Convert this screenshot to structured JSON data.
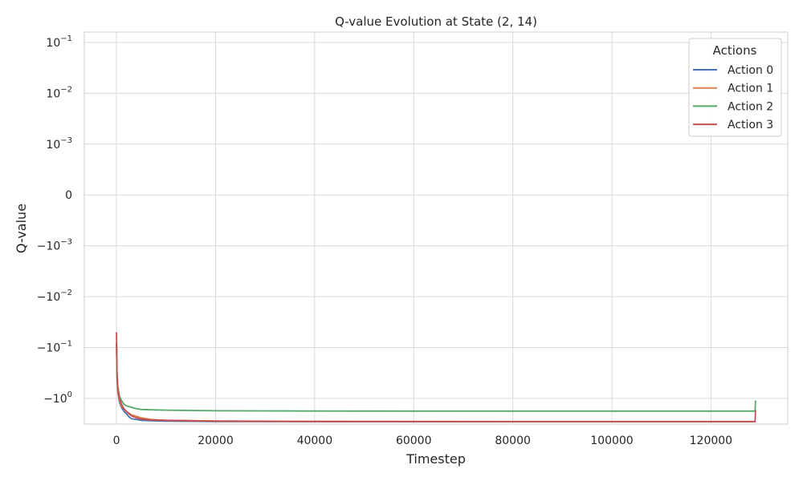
{
  "chart_data": {
    "type": "line",
    "title": "Q-value Evolution at State (2, 14)",
    "xlabel": "Timestep",
    "ylabel": "Q-value",
    "x_scale": "linear",
    "y_scale": "symlog",
    "xlim": [
      -6500,
      135500
    ],
    "ylim": [
      -3.2,
      0.16
    ],
    "x_ticks": [
      0,
      20000,
      40000,
      60000,
      80000,
      100000,
      120000
    ],
    "x_tick_labels": [
      "0",
      "20000",
      "40000",
      "60000",
      "80000",
      "100000",
      "120000"
    ],
    "y_ticks": [
      0.1,
      0.01,
      0.001,
      0,
      -0.001,
      -0.01,
      -0.1,
      -1
    ],
    "y_tick_labels": [
      {
        "base": "10",
        "exp": "−1"
      },
      {
        "base": "10",
        "exp": "−2"
      },
      {
        "base": "10",
        "exp": "−3"
      },
      {
        "base": "0",
        "exp": ""
      },
      {
        "base": "−10",
        "exp": "−3"
      },
      {
        "base": "−10",
        "exp": "−2"
      },
      {
        "base": "−10",
        "exp": "−1"
      },
      {
        "base": "−10",
        "exp": "0"
      }
    ],
    "grid": true,
    "legend": {
      "title": "Actions",
      "placement": "top-right"
    },
    "series": [
      {
        "name": "Action 0",
        "color": "#4c72b0",
        "x": [
          0,
          100,
          300,
          600,
          1000,
          1500,
          2000,
          2500,
          3000,
          4000,
          5000,
          7000,
          10000,
          20000,
          40000,
          60000,
          80000,
          100000,
          120000,
          129000
        ],
        "y": [
          -0.08,
          -0.4,
          -0.8,
          -1.2,
          -1.5,
          -1.8,
          -2.0,
          -2.3,
          -2.5,
          -2.6,
          -2.7,
          -2.75,
          -2.8,
          -2.85,
          -2.87,
          -2.88,
          -2.88,
          -2.88,
          -2.88,
          -2.88
        ]
      },
      {
        "name": "Action 1",
        "color": "#dd8452",
        "x": [
          0,
          100,
          300,
          600,
          1000,
          1500,
          2000,
          3000,
          5000,
          7000,
          10000,
          20000,
          40000,
          60000,
          80000,
          100000,
          120000,
          129000
        ],
        "y": [
          -0.08,
          -0.4,
          -0.8,
          -1.1,
          -1.4,
          -1.6,
          -1.8,
          -2.1,
          -2.4,
          -2.6,
          -2.7,
          -2.78,
          -2.82,
          -2.84,
          -2.85,
          -2.85,
          -2.85,
          -2.85
        ]
      },
      {
        "name": "Action 2",
        "color": "#55a868",
        "x": [
          0,
          100,
          300,
          600,
          1000,
          1500,
          2000,
          3000,
          4000,
          5000,
          7000,
          10000,
          20000,
          40000,
          60000,
          80000,
          100000,
          120000,
          128900,
          129000
        ],
        "y": [
          -0.08,
          -0.3,
          -0.6,
          -0.9,
          -1.1,
          -1.3,
          -1.4,
          -1.5,
          -1.6,
          -1.65,
          -1.68,
          -1.7,
          -1.75,
          -1.77,
          -1.78,
          -1.78,
          -1.78,
          -1.78,
          -1.78,
          -1.1
        ]
      },
      {
        "name": "Action 3",
        "color": "#c44e52",
        "x": [
          0,
          100,
          300,
          600,
          1000,
          1500,
          2000,
          2500,
          3000,
          4000,
          5000,
          7000,
          10000,
          20000,
          40000,
          60000,
          80000,
          100000,
          120000,
          128900,
          129000
        ],
        "y": [
          -0.05,
          -0.35,
          -0.7,
          -1.0,
          -1.3,
          -1.6,
          -1.8,
          -2.0,
          -2.2,
          -2.4,
          -2.55,
          -2.65,
          -2.7,
          -2.8,
          -2.85,
          -2.86,
          -2.87,
          -2.87,
          -2.87,
          -2.87,
          -1.7
        ]
      }
    ]
  }
}
